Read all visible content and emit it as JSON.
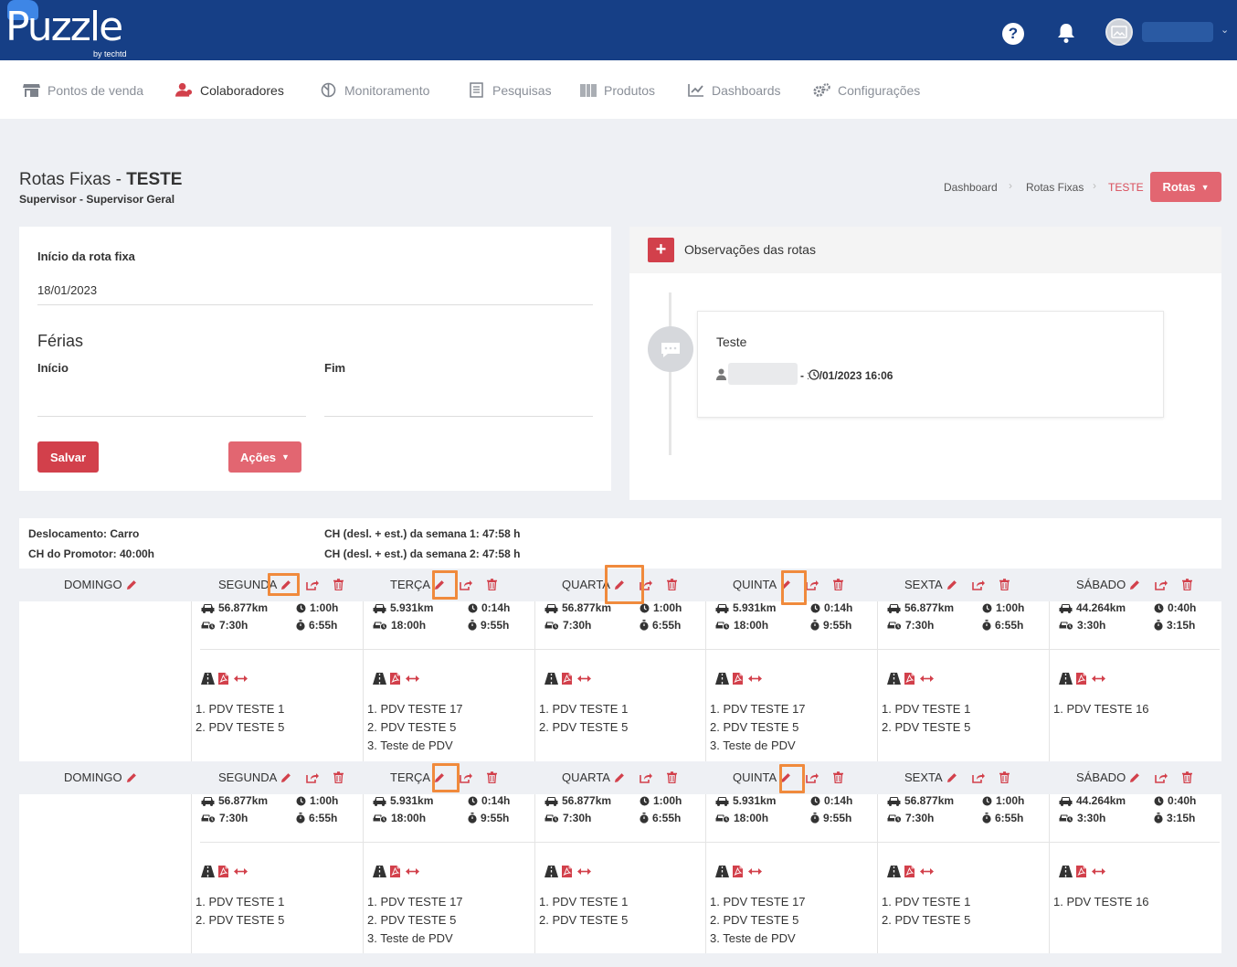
{
  "app": {
    "logo": "Puzzle",
    "logo_sub": "by techtd",
    "help_symbol": "?"
  },
  "nav": [
    {
      "label": "Pontos de venda",
      "icon": "store-icon",
      "active": false
    },
    {
      "label": "Colaboradores",
      "icon": "users-icon",
      "active": true
    },
    {
      "label": "Monitoramento",
      "icon": "monitor-icon",
      "active": false
    },
    {
      "label": "Pesquisas",
      "icon": "survey-icon",
      "active": false
    },
    {
      "label": "Produtos",
      "icon": "barcode-icon",
      "active": false
    },
    {
      "label": "Dashboards",
      "icon": "chart-icon",
      "active": false
    },
    {
      "label": "Configurações",
      "icon": "gears-icon",
      "active": false
    }
  ],
  "page": {
    "title_prefix": "Rotas Fixas - ",
    "title_name": "TESTE",
    "subtitle": "Supervisor - Supervisor Geral"
  },
  "breadcrumb": {
    "items": [
      "Dashboard",
      "Rotas Fixas"
    ],
    "active": "TESTE"
  },
  "rotas_button": "Rotas",
  "form": {
    "start_label": "Início da rota fixa",
    "start_value": "18/01/2023",
    "vacation_title": "Férias",
    "vacation_start_label": "Início",
    "vacation_end_label": "Fim",
    "save_label": "Salvar",
    "actions_label": "Ações"
  },
  "observations": {
    "title": "Observações das rotas",
    "note": {
      "text": "Teste",
      "meta": "- 18/01/2023 16:06"
    }
  },
  "summary": {
    "travel": "Deslocamento: Carro",
    "promoter_hours": "CH do Promotor: 40:00h",
    "week1": "CH (desl. + est.) da semana 1: 47:58 h",
    "week2": "CH (desl. + est.) da semana 2: 47:58 h"
  },
  "colors": {
    "topbar": "#163f86",
    "accent": "#d2404b",
    "accent_light": "#e26671",
    "highlight": "#f08a3c"
  },
  "weeks": [
    {
      "days": [
        {
          "name": "DOMINGO",
          "has_route": false
        },
        {
          "name": "SEGUNDA",
          "has_route": true,
          "km": "56.877km",
          "drive": "1:00h",
          "route_time": "7:30h",
          "total": "6:55h",
          "pdvs": [
            "1. PDV TESTE 1",
            "2. PDV TESTE 5"
          ]
        },
        {
          "name": "TERÇA",
          "has_route": true,
          "km": "5.931km",
          "drive": "0:14h",
          "route_time": "18:00h",
          "total": "9:55h",
          "pdvs": [
            "1. PDV TESTE 17",
            "2. PDV TESTE 5",
            "3. Teste de PDV"
          ]
        },
        {
          "name": "QUARTA",
          "has_route": true,
          "km": "56.877km",
          "drive": "1:00h",
          "route_time": "7:30h",
          "total": "6:55h",
          "pdvs": [
            "1. PDV TESTE 1",
            "2. PDV TESTE 5"
          ]
        },
        {
          "name": "QUINTA",
          "has_route": true,
          "km": "5.931km",
          "drive": "0:14h",
          "route_time": "18:00h",
          "total": "9:55h",
          "pdvs": [
            "1. PDV TESTE 17",
            "2. PDV TESTE 5",
            "3. Teste de PDV"
          ]
        },
        {
          "name": "SEXTA",
          "has_route": true,
          "km": "56.877km",
          "drive": "1:00h",
          "route_time": "7:30h",
          "total": "6:55h",
          "pdvs": [
            "1. PDV TESTE 1",
            "2. PDV TESTE 5"
          ]
        },
        {
          "name": "SÁBADO",
          "has_route": true,
          "km": "44.264km",
          "drive": "0:40h",
          "route_time": "3:30h",
          "total": "3:15h",
          "pdvs": [
            "1. PDV TESTE 16"
          ]
        }
      ]
    },
    {
      "days": [
        {
          "name": "DOMINGO",
          "has_route": false
        },
        {
          "name": "SEGUNDA",
          "has_route": true,
          "km": "56.877km",
          "drive": "1:00h",
          "route_time": "7:30h",
          "total": "6:55h",
          "pdvs": [
            "1. PDV TESTE 1",
            "2. PDV TESTE 5"
          ]
        },
        {
          "name": "TERÇA",
          "has_route": true,
          "km": "5.931km",
          "drive": "0:14h",
          "route_time": "18:00h",
          "total": "9:55h",
          "pdvs": [
            "1. PDV TESTE 17",
            "2. PDV TESTE 5",
            "3. Teste de PDV"
          ]
        },
        {
          "name": "QUARTA",
          "has_route": true,
          "km": "56.877km",
          "drive": "1:00h",
          "route_time": "7:30h",
          "total": "6:55h",
          "pdvs": [
            "1. PDV TESTE 1",
            "2. PDV TESTE 5"
          ]
        },
        {
          "name": "QUINTA",
          "has_route": true,
          "km": "5.931km",
          "drive": "0:14h",
          "route_time": "18:00h",
          "total": "9:55h",
          "pdvs": [
            "1. PDV TESTE 17",
            "2. PDV TESTE 5",
            "3. Teste de PDV"
          ]
        },
        {
          "name": "SEXTA",
          "has_route": true,
          "km": "56.877km",
          "drive": "1:00h",
          "route_time": "7:30h",
          "total": "6:55h",
          "pdvs": [
            "1. PDV TESTE 1",
            "2. PDV TESTE 5"
          ]
        },
        {
          "name": "SÁBADO",
          "has_route": true,
          "km": "44.264km",
          "drive": "0:40h",
          "route_time": "3:30h",
          "total": "3:15h",
          "pdvs": [
            "1. PDV TESTE 16"
          ]
        }
      ]
    }
  ]
}
